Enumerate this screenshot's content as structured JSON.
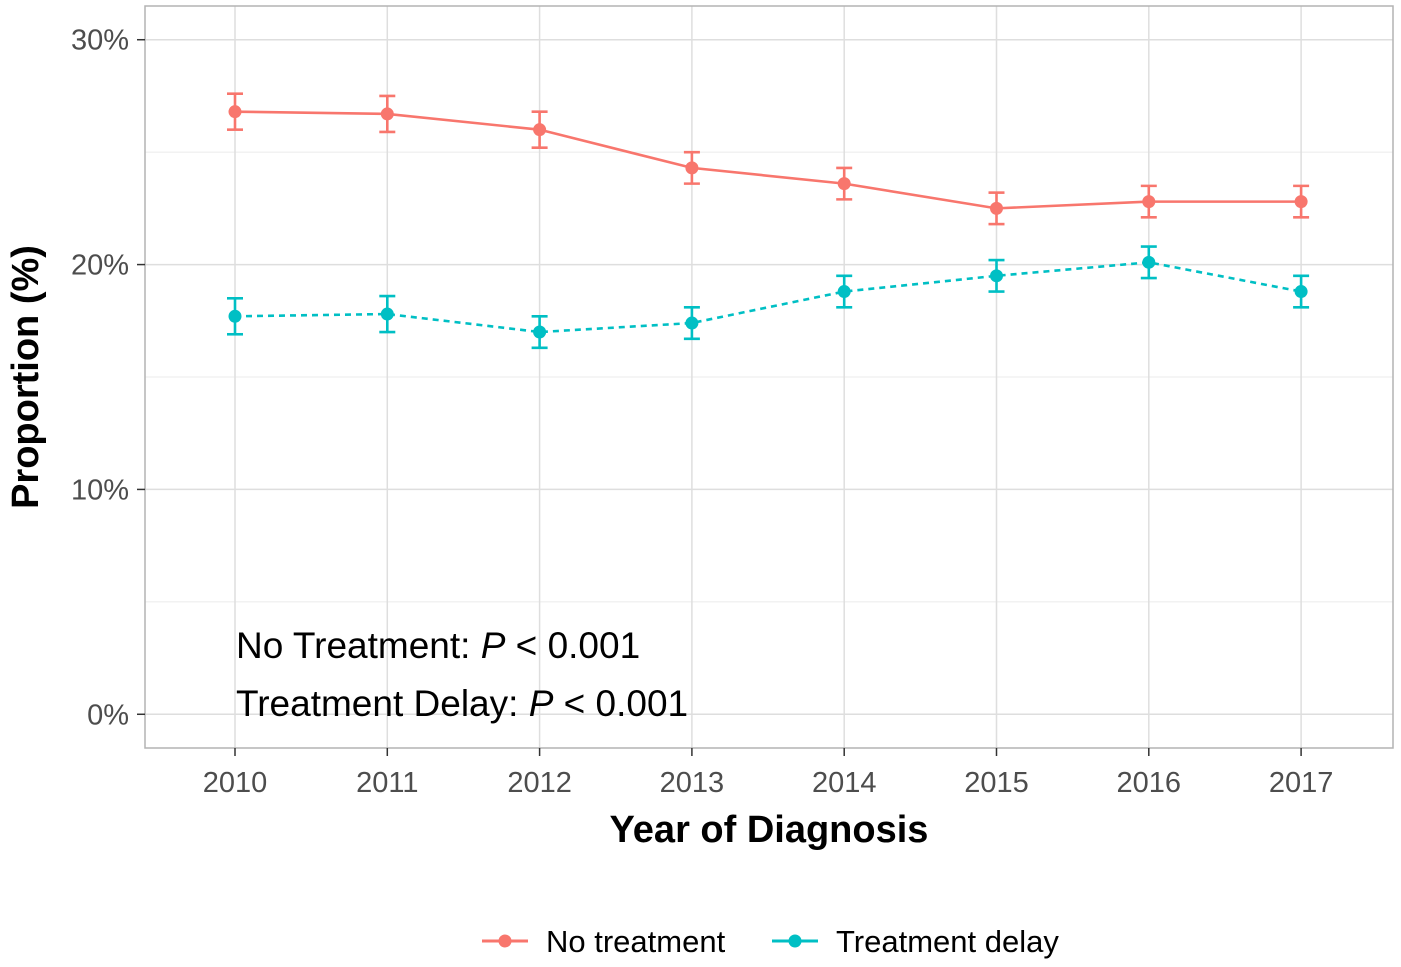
{
  "chart_data": {
    "type": "line",
    "title": "",
    "xlabel": "Year of Diagnosis",
    "ylabel": "Proportion (%)",
    "x": [
      "2010",
      "2011",
      "2012",
      "2013",
      "2014",
      "2015",
      "2016",
      "2017"
    ],
    "ylim": [
      -1.5,
      31.5
    ],
    "yticks": [
      0,
      10,
      20,
      30
    ],
    "ytick_labels": [
      "0%",
      "10%",
      "20%",
      "30%"
    ],
    "grid": true,
    "legend_position": "bottom",
    "series": [
      {
        "name": "No treatment",
        "color": "#f8766d",
        "linestyle": "solid",
        "values": [
          26.8,
          26.7,
          26.0,
          24.3,
          23.6,
          22.5,
          22.8,
          22.8
        ],
        "lower": [
          26.0,
          25.9,
          25.2,
          23.6,
          22.9,
          21.8,
          22.1,
          22.1
        ],
        "upper": [
          27.6,
          27.5,
          26.8,
          25.0,
          24.3,
          23.2,
          23.5,
          23.5
        ]
      },
      {
        "name": "Treatment delay",
        "color": "#00bfc4",
        "linestyle": "dashed",
        "values": [
          17.7,
          17.8,
          17.0,
          17.4,
          18.8,
          19.5,
          20.1,
          18.8
        ],
        "lower": [
          16.9,
          17.0,
          16.3,
          16.7,
          18.1,
          18.8,
          19.4,
          18.1
        ],
        "upper": [
          18.5,
          18.6,
          17.7,
          18.1,
          19.5,
          20.2,
          20.8,
          19.5
        ]
      }
    ],
    "annotations": [
      {
        "prefix": "No Treatment: ",
        "stat": "P",
        "suffix": " < 0.001"
      },
      {
        "prefix": "Treatment Delay: ",
        "stat": "P",
        "suffix": " < 0.001"
      }
    ]
  }
}
